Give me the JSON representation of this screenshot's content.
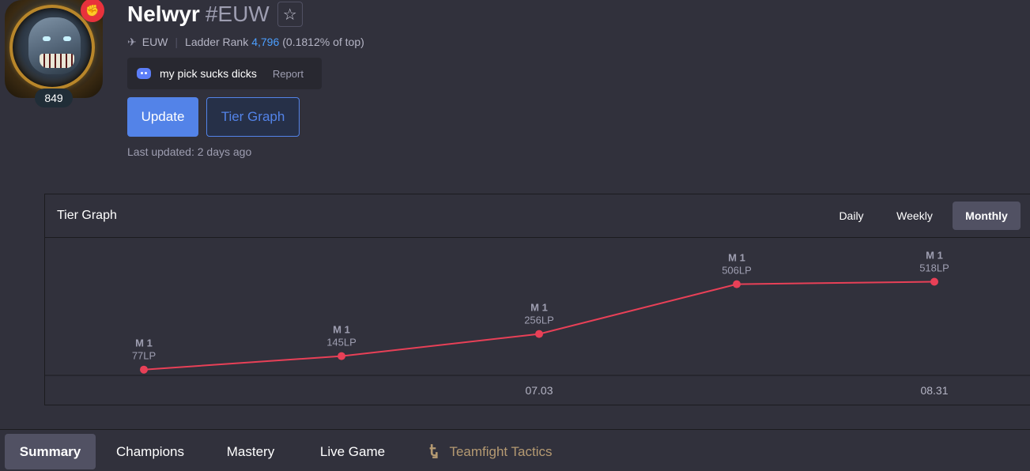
{
  "profile": {
    "name": "Nelwyr",
    "tag": "#EUW",
    "level": "849",
    "region": "EUW",
    "ladder_rank_label": "Ladder Rank",
    "ladder_rank": "4,796",
    "ladder_percent": "(0.1812% of top)",
    "status_message": "my pick sucks dicks",
    "report_label": "Report",
    "update_label": "Update",
    "tier_graph_label": "Tier Graph",
    "last_updated": "Last updated: 2 days ago",
    "icons": {
      "favorite": "star-icon",
      "region": "region-icon",
      "status": "discord-icon",
      "riot": "riot-icon"
    },
    "colors": {
      "primary": "#5383e8",
      "rank_link": "#4c9fff",
      "riot_badge": "#e8323c"
    }
  },
  "tier_graph": {
    "title": "Tier Graph",
    "periods": [
      {
        "label": "Daily",
        "active": false
      },
      {
        "label": "Weekly",
        "active": false
      },
      {
        "label": "Monthly",
        "active": true
      }
    ]
  },
  "chart_data": {
    "type": "line",
    "title": "Tier Graph",
    "series_color": "#e84057",
    "points": [
      {
        "tier": "M 1",
        "lp": 77,
        "lp_label": "77LP",
        "x_label": ""
      },
      {
        "tier": "M 1",
        "lp": 145,
        "lp_label": "145LP",
        "x_label": ""
      },
      {
        "tier": "M 1",
        "lp": 256,
        "lp_label": "256LP",
        "x_label": "07.03"
      },
      {
        "tier": "M 1",
        "lp": 506,
        "lp_label": "506LP",
        "x_label": ""
      },
      {
        "tier": "M 1",
        "lp": 518,
        "lp_label": "518LP",
        "x_label": "08.31"
      }
    ],
    "ylim": [
      60,
      540
    ],
    "grid": false,
    "legend": "none"
  },
  "nav": {
    "tabs": [
      {
        "label": "Summary",
        "active": true
      },
      {
        "label": "Champions",
        "active": false
      },
      {
        "label": "Mastery",
        "active": false
      },
      {
        "label": "Live Game",
        "active": false
      },
      {
        "label": "Teamfight Tactics",
        "active": false,
        "icon": "tft-icon"
      }
    ]
  }
}
